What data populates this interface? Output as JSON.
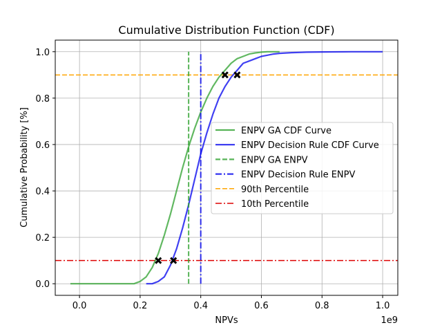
{
  "chart_data": {
    "type": "line",
    "title": "Cumulative Distribution Function (CDF)",
    "xlabel": "NPVs",
    "ylabel": "Cumulative Probability [%]",
    "x_scale_label": "1e9",
    "xlim": [
      -0.08,
      1.05
    ],
    "ylim": [
      -0.05,
      1.05
    ],
    "x_ticks": [
      0.0,
      0.2,
      0.4,
      0.6,
      0.8,
      1.0
    ],
    "x_tick_labels": [
      "0.0",
      "0.2",
      "0.4",
      "0.6",
      "0.8",
      "1.0"
    ],
    "y_ticks": [
      0.0,
      0.2,
      0.4,
      0.6,
      0.8,
      1.0
    ],
    "y_tick_labels": [
      "0.0",
      "0.2",
      "0.4",
      "0.6",
      "0.8",
      "1.0"
    ],
    "grid": true,
    "legend_position": "center-right",
    "series": [
      {
        "name": "ENPV GA CDF Curve",
        "color": "#2ca02c",
        "style": "solid",
        "x": [
          -0.03,
          0.0,
          0.1,
          0.18,
          0.2,
          0.22,
          0.24,
          0.26,
          0.28,
          0.3,
          0.32,
          0.34,
          0.36,
          0.38,
          0.4,
          0.42,
          0.44,
          0.46,
          0.48,
          0.5,
          0.52,
          0.54,
          0.56,
          0.58,
          0.6,
          0.62,
          0.64,
          0.66
        ],
        "y": [
          0.0,
          0.0,
          0.0,
          0.0,
          0.01,
          0.03,
          0.07,
          0.13,
          0.21,
          0.3,
          0.4,
          0.5,
          0.59,
          0.67,
          0.74,
          0.8,
          0.85,
          0.89,
          0.92,
          0.95,
          0.97,
          0.98,
          0.99,
          0.995,
          0.998,
          1.0,
          1.0,
          1.0
        ]
      },
      {
        "name": "ENPV Decision Rule CDF Curve",
        "color": "#0000ee",
        "style": "solid",
        "x": [
          0.22,
          0.24,
          0.26,
          0.28,
          0.3,
          0.32,
          0.34,
          0.36,
          0.38,
          0.4,
          0.42,
          0.44,
          0.46,
          0.48,
          0.5,
          0.52,
          0.54,
          0.56,
          0.58,
          0.6,
          0.62,
          0.64,
          0.66,
          0.7,
          0.75,
          0.8,
          0.9,
          1.0
        ],
        "y": [
          0.0,
          0.0,
          0.01,
          0.03,
          0.08,
          0.15,
          0.24,
          0.34,
          0.45,
          0.56,
          0.65,
          0.73,
          0.8,
          0.85,
          0.89,
          0.92,
          0.95,
          0.96,
          0.97,
          0.98,
          0.985,
          0.99,
          0.993,
          0.996,
          0.998,
          0.999,
          1.0,
          1.0
        ]
      },
      {
        "name": "ENPV GA ENPV",
        "color": "#2ca02c",
        "style": "dashed",
        "orientation": "vertical",
        "x_value": 0.36
      },
      {
        "name": "ENPV Decision Rule ENPV",
        "color": "#0000ee",
        "style": "dashdot",
        "orientation": "vertical",
        "x_value": 0.4
      },
      {
        "name": "90th Percentile",
        "color": "#ffa500",
        "style": "dashed",
        "orientation": "horizontal",
        "y_value": 0.9
      },
      {
        "name": "10th Percentile",
        "color": "#dd0000",
        "style": "dashdot",
        "orientation": "horizontal",
        "y_value": 0.1
      }
    ],
    "markers": [
      {
        "x": 0.26,
        "y": 0.1
      },
      {
        "x": 0.31,
        "y": 0.1
      },
      {
        "x": 0.48,
        "y": 0.9
      },
      {
        "x": 0.52,
        "y": 0.9
      }
    ]
  }
}
